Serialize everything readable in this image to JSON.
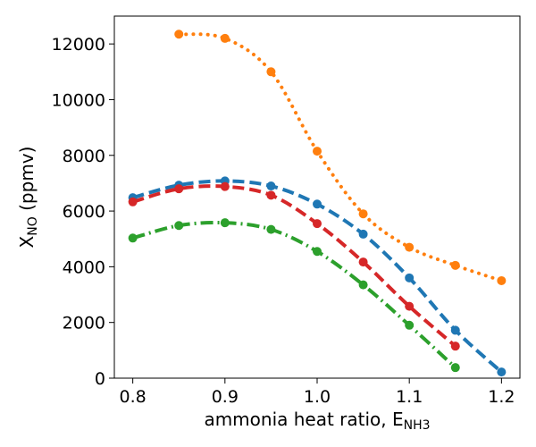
{
  "chart_data": {
    "type": "line",
    "xlabel": {
      "main": "ammonia heat ratio, E",
      "sub": "NH3"
    },
    "ylabel": {
      "main": "X",
      "sub": "NO",
      "suffix": " (ppmv)"
    },
    "xlim": [
      0.78,
      1.22
    ],
    "ylim": [
      0,
      13000
    ],
    "xticks": [
      0.8,
      0.9,
      1.0,
      1.1,
      1.2
    ],
    "xtick_labels": [
      "0.8",
      "0.9",
      "1.0",
      "1.1",
      "1.2"
    ],
    "yticks": [
      0,
      2000,
      4000,
      6000,
      8000,
      10000,
      12000
    ],
    "ytick_labels": [
      "0",
      "2000",
      "4000",
      "6000",
      "8000",
      "10000",
      "12000"
    ],
    "grid": false,
    "series": [
      {
        "color": "#ff7f0e",
        "dash": "dotted",
        "points": [
          [
            0.85,
            12350
          ],
          [
            0.9,
            12200
          ],
          [
            0.95,
            11000
          ],
          [
            1.0,
            8150
          ],
          [
            1.05,
            5900
          ],
          [
            1.1,
            4700
          ],
          [
            1.15,
            4050
          ],
          [
            1.2,
            3500
          ]
        ]
      },
      {
        "color": "#1f77b4",
        "dash": "dashed",
        "points": [
          [
            0.8,
            6480
          ],
          [
            0.85,
            6930
          ],
          [
            0.9,
            7080
          ],
          [
            0.95,
            6900
          ],
          [
            1.0,
            6250
          ],
          [
            1.05,
            5170
          ],
          [
            1.1,
            3600
          ],
          [
            1.15,
            1720
          ],
          [
            1.2,
            220
          ]
        ]
      },
      {
        "color": "#d62728",
        "dash": "dashed",
        "points": [
          [
            0.8,
            6330
          ],
          [
            0.85,
            6800
          ],
          [
            0.9,
            6880
          ],
          [
            0.95,
            6570
          ],
          [
            1.0,
            5550
          ],
          [
            1.05,
            4170
          ],
          [
            1.1,
            2580
          ],
          [
            1.15,
            1150
          ]
        ]
      },
      {
        "color": "#2ca02c",
        "dash": "dashdot",
        "points": [
          [
            0.8,
            5030
          ],
          [
            0.85,
            5480
          ],
          [
            0.9,
            5580
          ],
          [
            0.95,
            5340
          ],
          [
            1.0,
            4550
          ],
          [
            1.05,
            3350
          ],
          [
            1.1,
            1900
          ],
          [
            1.15,
            380
          ]
        ]
      }
    ]
  }
}
